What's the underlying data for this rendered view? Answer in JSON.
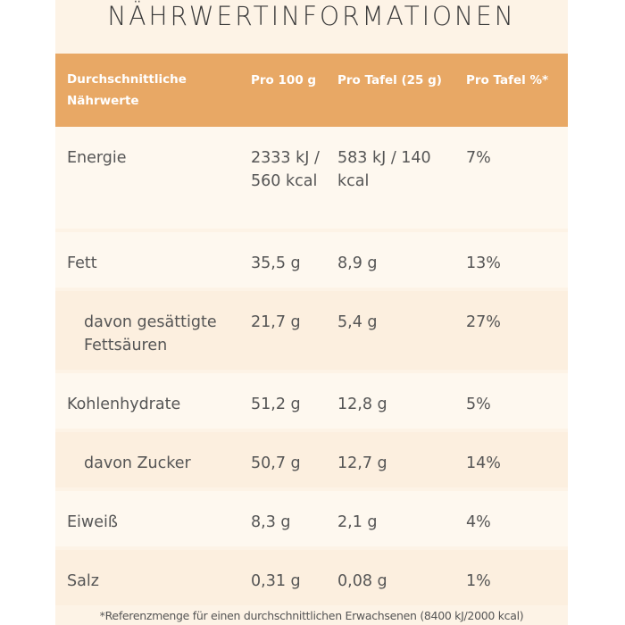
{
  "title": "NÄHRWERTINFORMATIONEN",
  "table": {
    "headers": [
      "Durchschnittliche Nährwerte",
      "Pro 100 g",
      "Pro Tafel (25 g)",
      "Pro Tafel %*"
    ],
    "rows": [
      {
        "name": "Energie",
        "per100": "2333 kJ / 560 kcal",
        "perTafel": "583 kJ / 140 kcal",
        "percent": "7%"
      },
      {
        "name": "Fett",
        "per100": "35,5 g",
        "perTafel": "8,9 g",
        "percent": "13%"
      },
      {
        "name": "davon gesättigte Fettsäuren",
        "per100": "21,7 g",
        "perTafel": "5,4 g",
        "percent": "27%"
      },
      {
        "name": "Kohlenhydrate",
        "per100": "51,2 g",
        "perTafel": "12,8 g",
        "percent": "5%"
      },
      {
        "name": "davon Zucker",
        "per100": "50,7 g",
        "perTafel": "12,7 g",
        "percent": "14%"
      },
      {
        "name": "Eiweiß",
        "per100": "8,3 g",
        "perTafel": "2,1 g",
        "percent": "4%"
      },
      {
        "name": "Salz",
        "per100": "0,31 g",
        "perTafel": "0,08 g",
        "percent": "1%"
      }
    ]
  },
  "footnote": "*Referenzmenge für einen durchschnittlichen Erwachsenen (8400 kJ/2000 kcal)",
  "colors": {
    "header_bg": "#e8a865",
    "panel_bg": "#fdf3e6",
    "row_light": "#fef8ef",
    "row_dark": "#fcefdf"
  }
}
